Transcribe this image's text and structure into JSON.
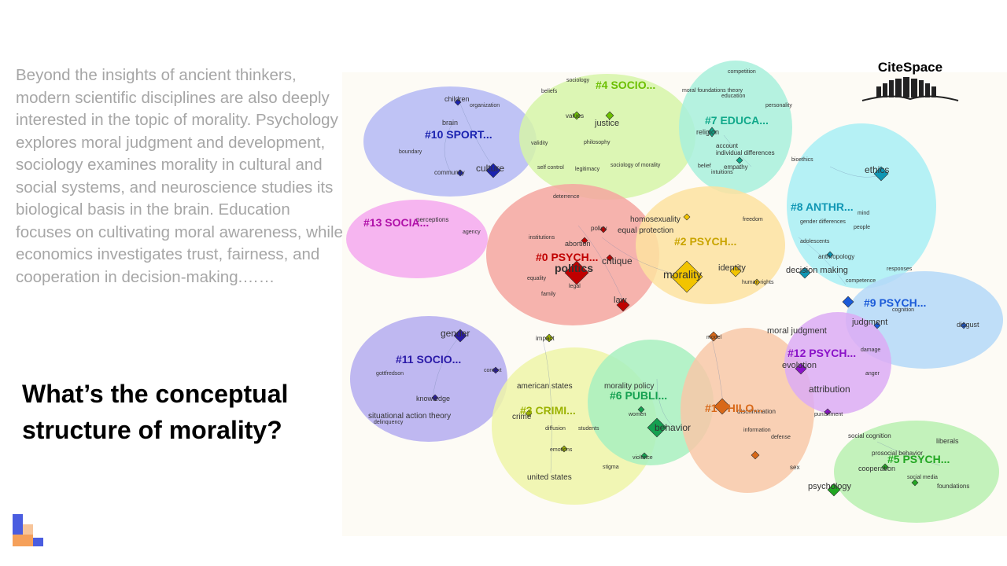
{
  "paragraph": "Beyond the insights of ancient thinkers, modern scientific disciplines are also deeply interested in the topic of morality. Psychology explores moral judgment and development, sociology examines morality in cultural and social systems, and neuroscience studies its biological basis in the brain. Education focuses on cultivating moral awareness, while economics investigates trust, fairness, and cooperation in decision-making.……",
  "question": "What’s the conceptual structure of morality?",
  "citespace_logo": "CiteSpace",
  "colors": {
    "paragraph_text": "#a6a6a6",
    "logo_blue": "#4a5de0",
    "logo_orange": "#f5a05a"
  },
  "clusters": [
    {
      "label": "#0 PSYCH...",
      "color": "#f4a6a0",
      "text_color": "#c00000"
    },
    {
      "label": "#2 PSYCH...",
      "color": "#fde2a0",
      "text_color": "#c9a400"
    },
    {
      "label": "#3 CRIMI...",
      "color": "#eef5a8",
      "text_color": "#9bb200"
    },
    {
      "label": "#4 SOCIO...",
      "color": "#d6f5a8",
      "text_color": "#6bbf00"
    },
    {
      "label": "#5 PSYCH...",
      "color": "#b8f0b0",
      "text_color": "#22a622"
    },
    {
      "label": "#6 PUBLI...",
      "color": "#a8f0c0",
      "text_color": "#14a050"
    },
    {
      "label": "#7 EDUCA...",
      "color": "#a8f0dc",
      "text_color": "#10a88a"
    },
    {
      "label": "#8 ANTHR...",
      "color": "#a8eef4",
      "text_color": "#0f96b4"
    },
    {
      "label": "#9 PSYCH...",
      "color": "#b4d8f8",
      "text_color": "#1a5ad8"
    },
    {
      "label": "#10 SPORT...",
      "color": "#b4b8f4",
      "text_color": "#1a22b0"
    },
    {
      "label": "#11 SOCIO...",
      "color": "#b4acf0",
      "text_color": "#2a1aa8"
    },
    {
      "label": "#12 PSYCH...",
      "color": "#dcacf4",
      "text_color": "#8a12c8"
    },
    {
      "label": "#13 SOCIA...",
      "color": "#f4a8ee",
      "text_color": "#b010a8"
    },
    {
      "label": "#1 PHILO...",
      "color": "#f8c8a8",
      "text_color": "#d86818"
    }
  ],
  "keywords": [
    "children",
    "organization",
    "brain",
    "culture",
    "community",
    "boundary",
    "validity",
    "self control",
    "legitimacy",
    "deterrence",
    "sociology",
    "beliefs",
    "values",
    "justice",
    "philosophy",
    "sociology of morality",
    "competition",
    "moral foundations theory",
    "education",
    "personality",
    "religion",
    "account",
    "individual differences",
    "belief",
    "empathy",
    "intuitions",
    "ethics",
    "bioethics",
    "mind",
    "gender differences",
    "people",
    "adolescents",
    "anthropology",
    "decision making",
    "perceptions",
    "agency",
    "policy",
    "institutions",
    "abortion",
    "equality",
    "family",
    "legal",
    "critique",
    "politics",
    "law",
    "homosexuality",
    "equal protection",
    "freedom",
    "morality",
    "identity",
    "human rights",
    "responses",
    "competence",
    "cognition",
    "judgment",
    "disgust",
    "damage",
    "model",
    "moral judgment",
    "evolution",
    "anger",
    "attribution",
    "punishment",
    "gender",
    "context",
    "knowledge",
    "gottfredson",
    "situational action theory",
    "delinquency",
    "impact",
    "american states",
    "morality policy",
    "crime",
    "diffusion",
    "students",
    "emotions",
    "united states",
    "women",
    "behavior",
    "violence",
    "stigma",
    "discrimination",
    "information",
    "defense",
    "sex",
    "social cognition",
    "liberals",
    "prosocial behavior",
    "cooperation",
    "social media",
    "psychology",
    "foundations"
  ]
}
